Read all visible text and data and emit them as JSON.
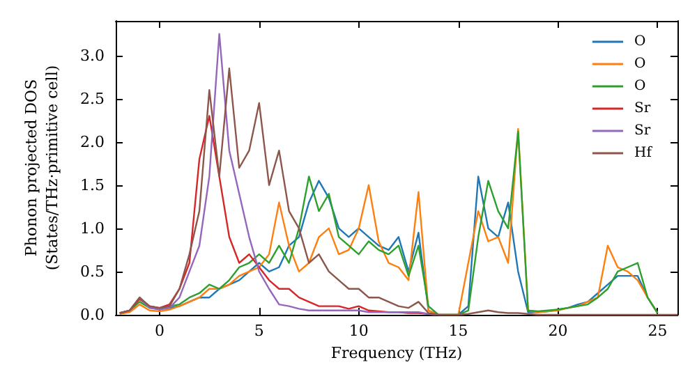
{
  "chart_data": {
    "type": "line",
    "xlabel": "Frequency (THz)",
    "ylabel": "Phonon projected DOS\n(States/THz·primitive cell)",
    "xlim": [
      -2.2,
      26
    ],
    "ylim": [
      0,
      3.4
    ],
    "xticks": [
      0,
      5,
      10,
      15,
      20,
      25
    ],
    "yticks": [
      {
        "value": 0,
        "label": "0.0"
      },
      {
        "value": 0.5,
        "label": "0.5"
      },
      {
        "value": 1,
        "label": "1.0"
      },
      {
        "value": 1.5,
        "label": "1.5"
      },
      {
        "value": 2,
        "label": "2.0"
      },
      {
        "value": 2.5,
        "label": "2.5"
      },
      {
        "value": 3,
        "label": "3.0"
      }
    ],
    "grid": false,
    "legend": "top right",
    "marker": "none",
    "line_style": "solid",
    "x": [
      -2,
      -1.5,
      -1,
      -0.5,
      0,
      0.5,
      1,
      1.5,
      2,
      2.5,
      3,
      3.5,
      4,
      4.5,
      5,
      5.5,
      6,
      6.5,
      7,
      7.5,
      8,
      8.5,
      9,
      9.5,
      10,
      10.5,
      11,
      11.5,
      12,
      12.5,
      13,
      13.5,
      14,
      14.5,
      15,
      15.5,
      16,
      16.5,
      17,
      17.5,
      18,
      18.5,
      19,
      19.5,
      20,
      20.5,
      21,
      21.5,
      22,
      22.5,
      23,
      23.5,
      24,
      24.5,
      25,
      25.5,
      26
    ],
    "series": [
      {
        "name": "O",
        "color": "#1f77b4",
        "values": [
          null,
          null,
          null,
          null,
          0.07,
          0.08,
          0.1,
          0.15,
          0.2,
          0.2,
          0.3,
          0.35,
          0.4,
          0.5,
          0.6,
          0.5,
          0.55,
          0.8,
          0.9,
          1.3,
          1.55,
          1.35,
          1.0,
          0.9,
          1.0,
          0.9,
          0.8,
          0.75,
          0.9,
          0.5,
          0.95,
          0.05,
          0,
          0,
          0,
          0.1,
          1.6,
          1.0,
          0.9,
          1.3,
          0.5,
          0.03,
          0.03,
          0.04,
          0.06,
          0.08,
          0.12,
          0.15,
          0.25,
          0.35,
          0.45,
          0.45,
          0.45,
          0.2,
          0.02,
          null,
          null
        ]
      },
      {
        "name": "O",
        "color": "#ff7f0e",
        "values": [
          0.01,
          0.03,
          0.12,
          0.05,
          0.04,
          0.06,
          0.1,
          0.15,
          0.2,
          0.3,
          0.3,
          0.35,
          0.45,
          0.5,
          0.55,
          0.7,
          1.3,
          0.8,
          0.5,
          0.6,
          0.9,
          1.0,
          0.7,
          0.75,
          1.0,
          1.5,
          0.85,
          0.6,
          0.55,
          0.4,
          1.42,
          0.05,
          0,
          0,
          0,
          0.6,
          1.2,
          0.85,
          0.9,
          0.6,
          2.15,
          0.05,
          0.03,
          0.04,
          0.05,
          0.08,
          0.1,
          0.15,
          0.2,
          0.8,
          0.55,
          0.5,
          0.4,
          0.2,
          0.02,
          null,
          null
        ]
      },
      {
        "name": "O",
        "color": "#2ca02c",
        "values": [
          0.02,
          0.05,
          0.15,
          0.08,
          0.07,
          0.1,
          0.12,
          0.2,
          0.25,
          0.35,
          0.3,
          0.4,
          0.55,
          0.6,
          0.7,
          0.6,
          0.8,
          0.6,
          1.0,
          1.6,
          1.2,
          1.4,
          0.9,
          0.8,
          0.7,
          0.85,
          0.75,
          0.7,
          0.8,
          0.45,
          0.8,
          0.1,
          0,
          0,
          0,
          0.05,
          0.9,
          1.55,
          1.2,
          1.0,
          2.12,
          0.05,
          0.04,
          0.05,
          0.06,
          0.08,
          0.1,
          0.12,
          0.2,
          0.3,
          0.5,
          0.55,
          0.6,
          0.2,
          0.02,
          null,
          null
        ]
      },
      {
        "name": "Sr",
        "color": "#d62728",
        "values": [
          0.02,
          0.05,
          0.18,
          0.1,
          0.08,
          0.12,
          0.3,
          0.6,
          1.8,
          2.3,
          1.6,
          0.9,
          0.6,
          0.7,
          0.55,
          0.4,
          0.3,
          0.3,
          0.2,
          0.15,
          0.1,
          0.1,
          0.1,
          0.07,
          0.1,
          0.05,
          0.04,
          0.03,
          0.03,
          0.02,
          0.02,
          0.01,
          0,
          null,
          null,
          null,
          null,
          null,
          null,
          null,
          null,
          null,
          null,
          null,
          null,
          null,
          null,
          null,
          null,
          null,
          null,
          null,
          null,
          null,
          null,
          null,
          null
        ]
      },
      {
        "name": "Sr",
        "color": "#9467bd",
        "values": [
          0.02,
          0.05,
          0.2,
          0.08,
          0.06,
          0.08,
          0.2,
          0.5,
          0.8,
          1.6,
          3.25,
          1.9,
          1.4,
          0.9,
          0.5,
          0.3,
          0.12,
          0.1,
          0.07,
          0.05,
          0.05,
          0.05,
          0.05,
          0.05,
          0.05,
          0.03,
          0.03,
          0.03,
          0.03,
          0.03,
          0.03,
          0.01,
          0,
          null,
          null,
          null,
          null,
          null,
          null,
          null,
          null,
          null,
          null,
          null,
          null,
          null,
          null,
          null,
          null,
          null,
          null,
          null,
          null,
          null,
          null,
          null,
          null
        ]
      },
      {
        "name": "Hf",
        "color": "#8c564b",
        "values": [
          0.02,
          0.05,
          0.2,
          0.1,
          0.08,
          0.1,
          0.3,
          0.7,
          1.2,
          2.6,
          1.6,
          2.85,
          1.7,
          1.9,
          2.45,
          1.5,
          1.9,
          1.2,
          1.0,
          0.6,
          0.7,
          0.5,
          0.4,
          0.3,
          0.3,
          0.2,
          0.2,
          0.15,
          0.1,
          0.08,
          0.15,
          0.02,
          0,
          0,
          0,
          0.01,
          0.03,
          0.05,
          0.03,
          0.02,
          0.02,
          0.01,
          0,
          0,
          0,
          0,
          0,
          0,
          0,
          0,
          0,
          0,
          0,
          0,
          0,
          0,
          0
        ]
      }
    ]
  }
}
